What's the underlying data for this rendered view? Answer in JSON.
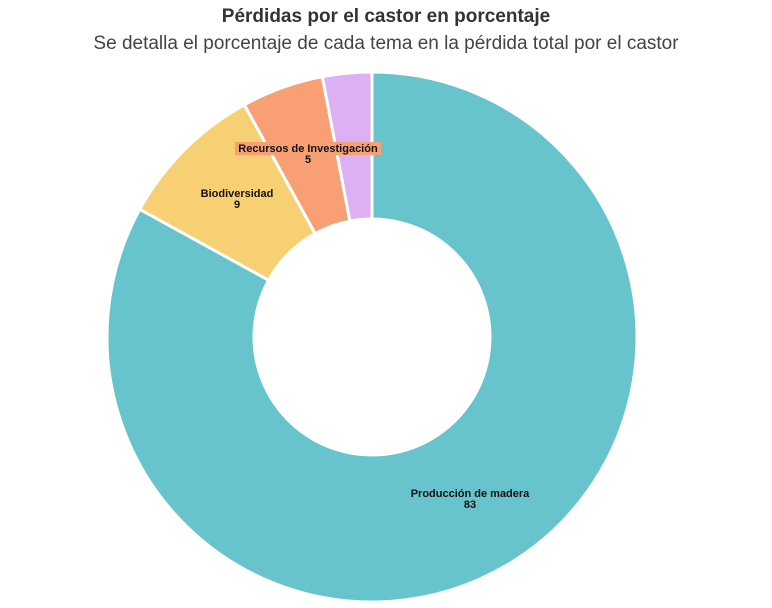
{
  "chart_data": {
    "type": "pie",
    "title": "Pérdidas por el castor en porcentaje",
    "subtitle": "Se detalla el porcentaje de cada tema en la pérdida total por el castor",
    "slices": [
      {
        "label": "Producción de madera",
        "value": 83,
        "color": "#67c4cc",
        "show_label": true
      },
      {
        "label": "Biodiversidad",
        "value": 9,
        "color": "#f6d072",
        "show_label": true
      },
      {
        "label": "Recursos de Investigación",
        "value": 5,
        "color": "#f8a074",
        "show_label": true
      },
      {
        "label": "",
        "value": 3,
        "color": "#dcb0f2",
        "show_label": false
      }
    ],
    "highlight_color": "#f8a074"
  }
}
